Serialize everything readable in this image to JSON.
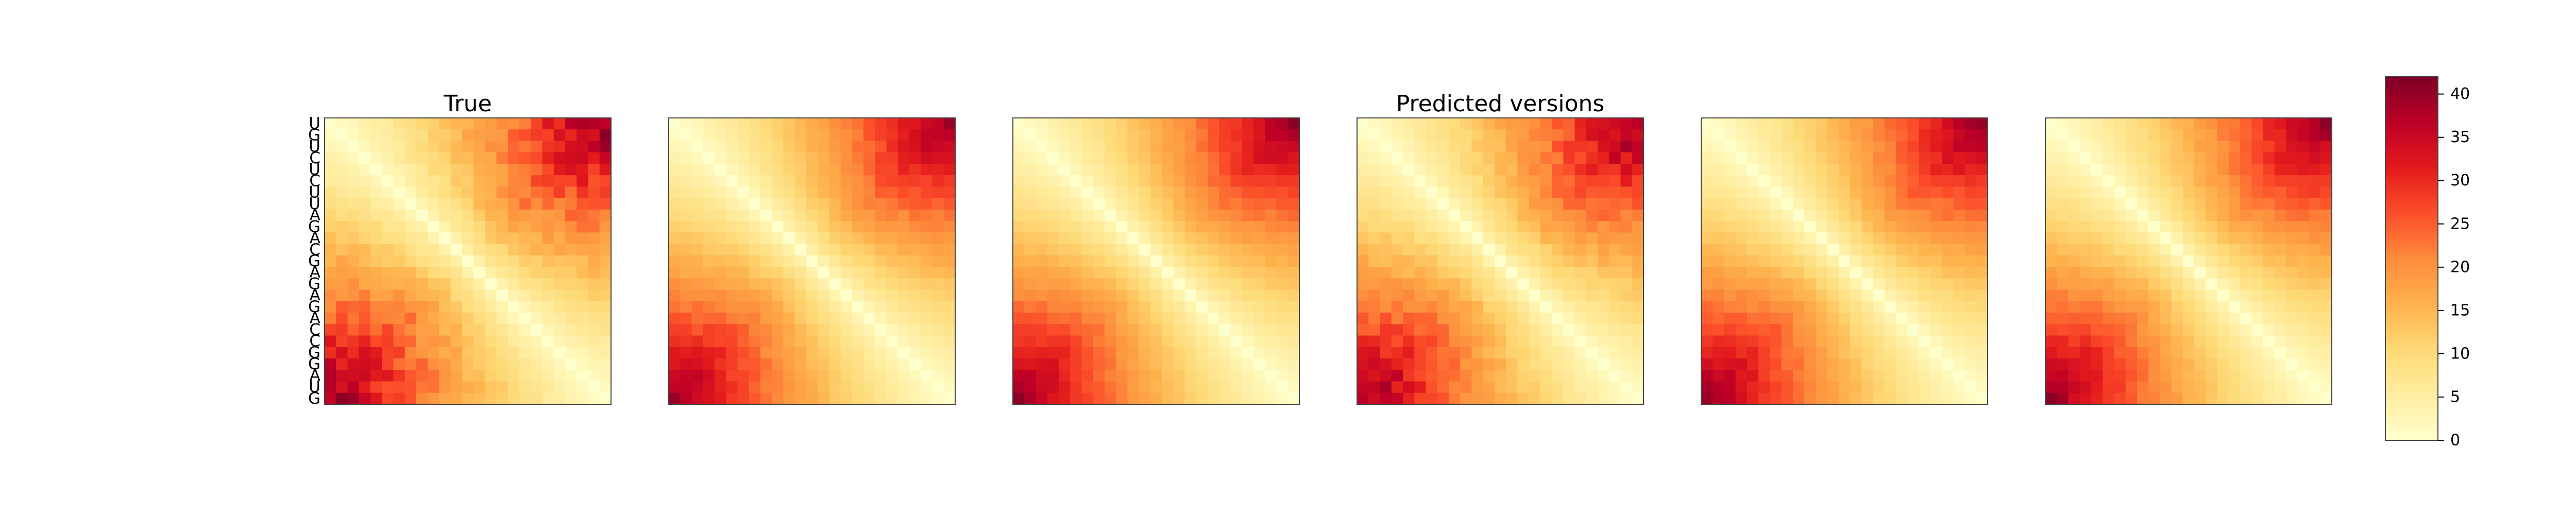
{
  "chart_data": {
    "type": "heatmap",
    "panels": [
      {
        "title": "True",
        "seed": 1,
        "noise": 0.12
      },
      {
        "title": "",
        "seed": 2,
        "noise": 0.05
      },
      {
        "title": "",
        "seed": 3,
        "noise": 0.04
      },
      {
        "title": "Predicted versions",
        "seed": 4,
        "noise": 0.1
      },
      {
        "title": "",
        "seed": 5,
        "noise": 0.05
      },
      {
        "title": "",
        "seed": 6,
        "noise": 0.05
      }
    ],
    "sequence": [
      "U",
      "G",
      "U",
      "C",
      "U",
      "C",
      "U",
      "U",
      "A",
      "G",
      "A",
      "C",
      "G",
      "A",
      "G",
      "A",
      "G",
      "A",
      "C",
      "C",
      "G",
      "G",
      "A",
      "U",
      "G"
    ],
    "colormap": "YlOrRd",
    "colorbar": {
      "min": 0,
      "max": 42,
      "ticks": [
        0,
        5,
        10,
        15,
        20,
        25,
        30,
        35,
        40
      ]
    },
    "colors": [
      "#ffffcc",
      "#ffeda0",
      "#fed976",
      "#feb24c",
      "#fd8d3c",
      "#fc4e2a",
      "#e31a1c",
      "#bd0026",
      "#800026"
    ]
  }
}
